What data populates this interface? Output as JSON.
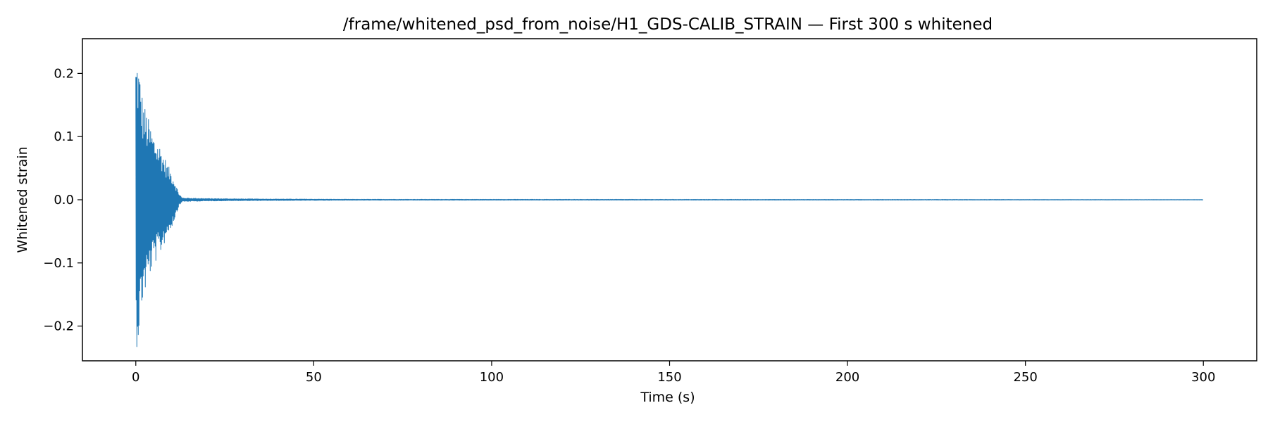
{
  "chart_data": {
    "type": "line",
    "title": "/frame/whitened_psd_from_noise/H1_GDS-CALIB_STRAIN — First 300 s whitened",
    "xlabel": "Time (s)",
    "ylabel": "Whitened strain",
    "xlim": [
      -15,
      315
    ],
    "ylim": [
      -0.255,
      0.255
    ],
    "xticks": [
      0,
      50,
      100,
      150,
      200,
      250,
      300
    ],
    "xtick_labels": [
      "0",
      "50",
      "100",
      "150",
      "200",
      "250",
      "300"
    ],
    "yticks": [
      -0.2,
      -0.1,
      0.0,
      0.1,
      0.2
    ],
    "ytick_labels": [
      "−0.2",
      "−0.1",
      "0.0",
      "0.1",
      "0.2"
    ],
    "grid": false,
    "series": [
      {
        "color": "#1f77b4",
        "envelope": {
          "t": [
            0,
            0.5,
            1,
            2,
            3,
            4,
            5,
            6,
            7,
            8,
            9,
            10,
            11,
            12,
            13,
            20,
            30,
            60,
            300
          ],
          "amplitude": [
            0.23,
            0.235,
            0.21,
            0.16,
            0.14,
            0.12,
            0.105,
            0.095,
            0.085,
            0.07,
            0.055,
            0.045,
            0.03,
            0.012,
            0.003,
            0.002,
            0.0015,
            0.0008,
            0.0004
          ]
        }
      }
    ]
  }
}
